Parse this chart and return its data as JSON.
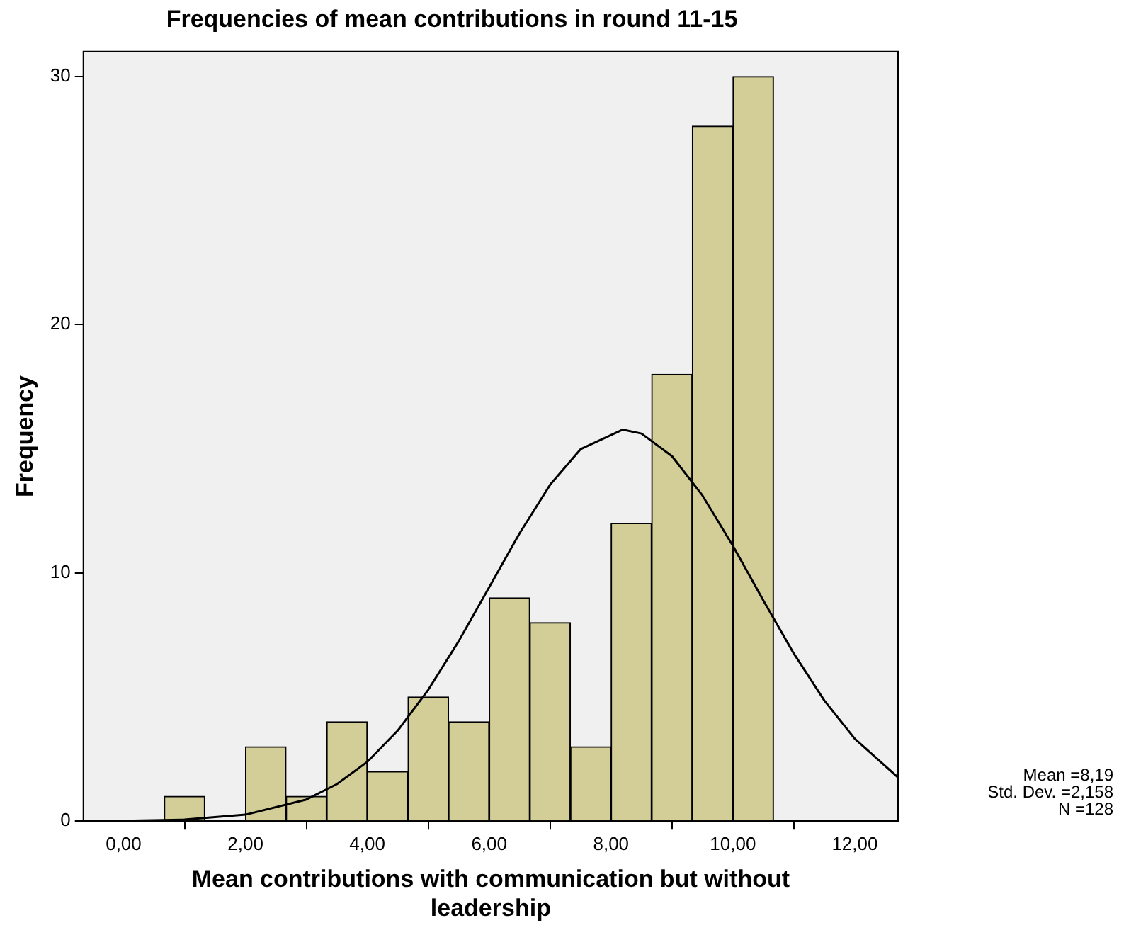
{
  "chart_data": {
    "type": "histogram",
    "title": "Frequencies of mean contributions in round 11-15",
    "xlabel": "Mean contributions with communication but without leadership",
    "ylabel": "Frequency",
    "bins": [
      0.667,
      1.333,
      2.0,
      2.667,
      3.333,
      4.0,
      4.667,
      5.333,
      6.0,
      6.667,
      7.333,
      8.0,
      8.667,
      9.333,
      10.0,
      10.667
    ],
    "values": [
      1,
      0,
      3,
      1,
      4,
      2,
      5,
      4,
      9,
      8,
      3,
      12,
      18,
      28,
      30
    ],
    "color": "#d3ce97",
    "series": [
      {
        "type": "line",
        "color": "#000000",
        "x": [
          -0.66,
          0,
          1,
          2,
          3,
          3.5,
          4,
          4.5,
          5,
          5.5,
          6,
          6.5,
          7,
          7.5,
          8.19,
          8.5,
          9,
          9.5,
          10,
          10.5,
          11,
          11.5,
          12,
          12.71
        ],
        "values": [
          0,
          0.01,
          0.06,
          0.26,
          0.87,
          1.49,
          2.39,
          3.65,
          5.29,
          7.25,
          9.42,
          11.6,
          13.55,
          14.98,
          15.77,
          15.61,
          14.7,
          13.12,
          11.09,
          8.89,
          6.75,
          4.86,
          3.32,
          1.76
        ]
      }
    ],
    "xlim": [
      -0.66,
      12.71
    ],
    "ylim": [
      0,
      31
    ],
    "xticks": [
      {
        "value": 0,
        "label": "0,00"
      },
      {
        "value": 2,
        "label": "2,00"
      },
      {
        "value": 4,
        "label": "4,00"
      },
      {
        "value": 6,
        "label": "6,00"
      },
      {
        "value": 8,
        "label": "8,00"
      },
      {
        "value": 10,
        "label": "10,00"
      },
      {
        "value": 12,
        "label": "12,00"
      }
    ],
    "yticks": [
      0,
      10,
      20,
      30
    ],
    "grid": false,
    "legend": false,
    "marker": "none",
    "line_style": "solid",
    "annotations": [
      "Mean =8,19",
      "Std. Dev. =2,158",
      "N =128"
    ]
  }
}
